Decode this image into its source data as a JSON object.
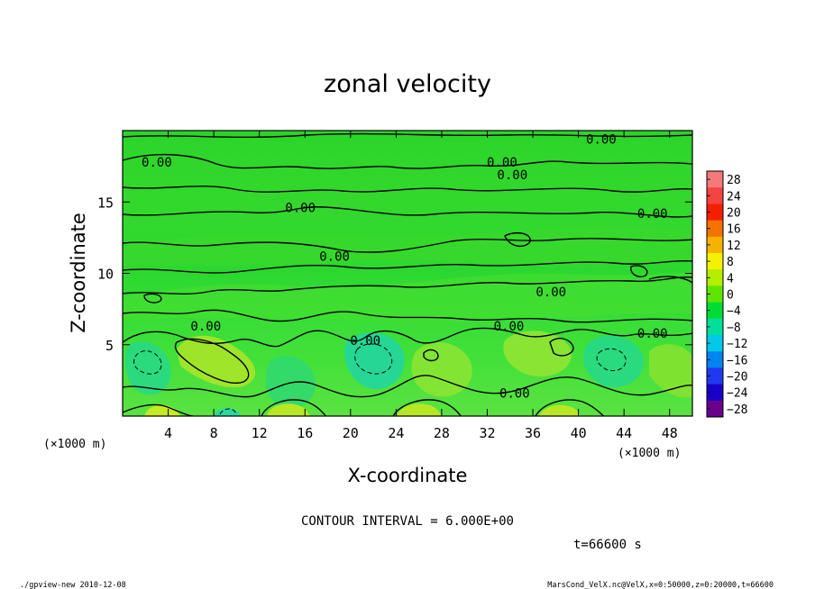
{
  "chart_data": {
    "type": "heatmap",
    "title": "zonal velocity",
    "xlabel": "X-coordinate",
    "ylabel": "Z-coordinate",
    "x_unit_left": "(×1000 m)",
    "x_unit_right": "(×1000 m)",
    "xlim": [
      0,
      50
    ],
    "ylim": [
      0,
      20
    ],
    "x_ticks": [
      4,
      8,
      12,
      16,
      20,
      24,
      28,
      32,
      36,
      40,
      44,
      48
    ],
    "x_ticklabels": [
      "4",
      "8",
      "12",
      "16",
      "20",
      "24",
      "28",
      "32",
      "36",
      "40",
      "44",
      "48"
    ],
    "y_ticks": [
      5,
      10,
      15
    ],
    "y_ticklabels": [
      "5",
      "10",
      "15"
    ],
    "colorbar": {
      "levels": [
        28,
        24,
        20,
        16,
        12,
        8,
        4,
        0,
        -4,
        -8,
        -12,
        -16,
        -20,
        -24,
        -28
      ],
      "labels": [
        "28",
        "24",
        "20",
        "16",
        "12",
        "8",
        "4",
        "0",
        "−4",
        "−8",
        "−12",
        "−16",
        "−20",
        "−24",
        "−28"
      ],
      "colors": [
        "#f47a7a",
        "#f44343",
        "#f41f00",
        "#f47200",
        "#f4b300",
        "#f4f200",
        "#b4ee00",
        "#5ee600",
        "#00dc36",
        "#00e09c",
        "#00c8e8",
        "#0084f0",
        "#2038f0",
        "#1800c8",
        "#6a008c"
      ]
    },
    "contour_labels": [
      {
        "x": 3.0,
        "y": 17.8,
        "text": "0.00"
      },
      {
        "x": 15.6,
        "y": 14.6,
        "text": "0.00"
      },
      {
        "x": 18.6,
        "y": 11.2,
        "text": "0.00"
      },
      {
        "x": 7.3,
        "y": 6.3,
        "text": "0.00"
      },
      {
        "x": 21.3,
        "y": 5.3,
        "text": "0.00"
      },
      {
        "x": 33.9,
        "y": 6.3,
        "text": "0.00"
      },
      {
        "x": 33.3,
        "y": 17.8,
        "text": "0.00"
      },
      {
        "x": 34.2,
        "y": 16.9,
        "text": "0.00"
      },
      {
        "x": 42.0,
        "y": 19.4,
        "text": "0.00"
      },
      {
        "x": 46.5,
        "y": 14.2,
        "text": "0.00"
      },
      {
        "x": 37.6,
        "y": 8.7,
        "text": "0.00"
      },
      {
        "x": 46.5,
        "y": 5.8,
        "text": "0.00"
      },
      {
        "x": 34.4,
        "y": 1.6,
        "text": "0.00"
      }
    ],
    "contour_interval": "CONTOUR INTERVAL = 6.000E+00",
    "time": "t=66600 s",
    "footer_left": "./gpview-new  2010-12-08",
    "footer_right": "MarsCond_VelX.nc@VelX,x=0:50000,z=0:20000,t=66600"
  }
}
